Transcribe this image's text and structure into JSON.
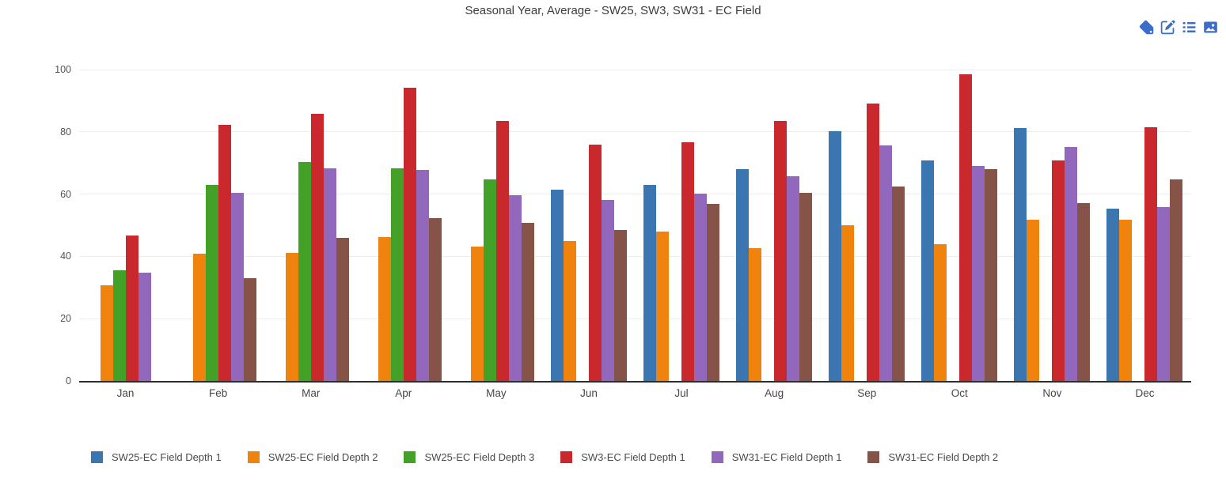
{
  "header": {
    "title": "Seasonal Year, Average - SW25, SW3, SW31 - EC Field"
  },
  "toolbar": {
    "accent_color": "#3a6cc8",
    "icons": [
      "tag-icon",
      "edit-icon",
      "list-icon",
      "image-icon"
    ]
  },
  "chart_data": {
    "type": "bar",
    "title": "Seasonal Year, Average - SW25, SW3, SW31 - EC Field",
    "categories": [
      "Jan",
      "Feb",
      "Mar",
      "Apr",
      "May",
      "Jun",
      "Jul",
      "Aug",
      "Sep",
      "Oct",
      "Nov",
      "Dec"
    ],
    "series": [
      {
        "name": "SW25-EC Field Depth 1",
        "color": "#3b76b0",
        "values": [
          null,
          null,
          null,
          null,
          null,
          61.5,
          62.9,
          68.0,
          80.3,
          70.9,
          81.2,
          55.3
        ]
      },
      {
        "name": "SW25-EC Field Depth 2",
        "color": "#f0830d",
        "values": [
          30.8,
          40.9,
          41.2,
          46.1,
          43.1,
          45.0,
          47.9,
          42.6,
          50.1,
          44.0,
          51.7,
          51.7
        ]
      },
      {
        "name": "SW25-EC Field Depth 3",
        "color": "#43a127",
        "values": [
          35.6,
          62.9,
          70.3,
          68.4,
          64.6,
          null,
          null,
          null,
          null,
          null,
          null,
          null
        ]
      },
      {
        "name": "SW3-EC Field Depth 1",
        "color": "#c9292c",
        "values": [
          46.6,
          82.3,
          85.9,
          94.1,
          83.6,
          76.0,
          76.7,
          83.4,
          89.2,
          98.6,
          70.9,
          81.4
        ]
      },
      {
        "name": "SW31-EC Field Depth 1",
        "color": "#9268bd",
        "values": [
          34.9,
          60.5,
          68.3,
          67.8,
          59.7,
          58.1,
          60.2,
          65.7,
          75.6,
          69.1,
          75.2,
          55.8
        ]
      },
      {
        "name": "SW31-EC Field Depth 2",
        "color": "#855347",
        "values": [
          null,
          33.0,
          46.0,
          52.4,
          50.7,
          48.6,
          56.9,
          60.5,
          62.5,
          68.0,
          57.2,
          64.7
        ]
      }
    ],
    "xlabel": "",
    "ylabel": "",
    "ylim": [
      0,
      100
    ],
    "yticks": [
      0,
      20,
      40,
      60,
      80,
      100
    ],
    "grid": true,
    "legend_position": "bottom"
  }
}
